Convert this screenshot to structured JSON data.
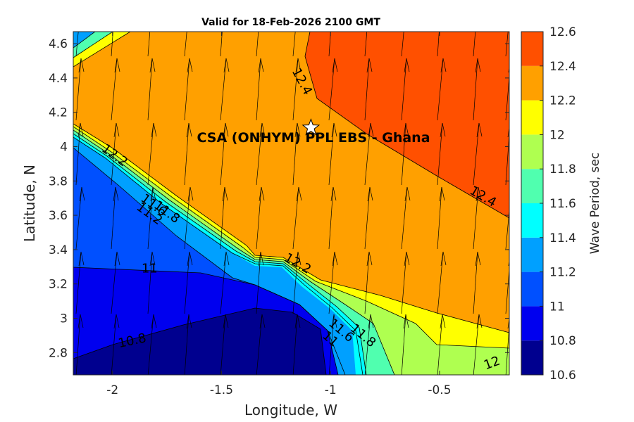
{
  "chart_data": {
    "type": "contour",
    "title": "Valid for 18-Feb-2026 2100 GMT",
    "xlabel": "Longitude, W",
    "ylabel": "Latitude, N",
    "xlim": [
      -2.18,
      -0.18
    ],
    "ylim": [
      2.67,
      4.67
    ],
    "xticks": [
      "-2",
      "-1.5",
      "-1",
      "-0.5"
    ],
    "xtick_values": [
      -2,
      -1.5,
      -1,
      -0.5
    ],
    "yticks": [
      "2.8",
      "3",
      "3.2",
      "3.4",
      "3.6",
      "3.8",
      "4",
      "4.2",
      "4.4",
      "4.6"
    ],
    "ytick_values": [
      2.8,
      3.0,
      3.2,
      3.4,
      3.6,
      3.8,
      4.0,
      4.2,
      4.4,
      4.6
    ],
    "colorbar": {
      "label": "Wave Period, sec",
      "tick_labels": [
        "10.6",
        "10.8",
        "11",
        "11.2",
        "11.4",
        "11.6",
        "11.8",
        "12",
        "12.2",
        "12.4",
        "12.6"
      ],
      "levels": [
        10.6,
        10.8,
        11.0,
        11.2,
        11.4,
        11.6,
        11.8,
        12.0,
        12.2,
        12.4,
        12.6
      ],
      "colors": [
        "#00008f",
        "#0000ef",
        "#0050ff",
        "#00a0ff",
        "#00ffff",
        "#50ffaf",
        "#afff50",
        "#ffff00",
        "#ffa000",
        "#ff5000"
      ]
    },
    "contour_labels": [
      {
        "text": "12.4",
        "lon": -1.13,
        "lat": 4.38,
        "angle": 62
      },
      {
        "text": "12.4",
        "lon": -0.3,
        "lat": 3.71,
        "angle": 30
      },
      {
        "text": "12.2",
        "lon": -1.99,
        "lat": 3.95,
        "angle": 36
      },
      {
        "text": "11.8",
        "lon": -1.75,
        "lat": 3.62,
        "angle": 36
      },
      {
        "text": "11.6",
        "lon": -1.81,
        "lat": 3.66,
        "angle": 36
      },
      {
        "text": "11.2",
        "lon": -1.83,
        "lat": 3.61,
        "angle": 36
      },
      {
        "text": "12.2",
        "lon": -1.15,
        "lat": 3.32,
        "angle": 30
      },
      {
        "text": "11",
        "lon": -1.83,
        "lat": 3.29,
        "angle": 0
      },
      {
        "text": "10.8",
        "lon": -1.91,
        "lat": 2.87,
        "angle": -12
      },
      {
        "text": "11.8",
        "lon": -0.85,
        "lat": 2.9,
        "angle": 40
      },
      {
        "text": "11.6",
        "lon": -0.95,
        "lat": 2.93,
        "angle": 40
      },
      {
        "text": "11",
        "lon": -1.0,
        "lat": 2.88,
        "angle": 40
      },
      {
        "text": "12",
        "lon": -0.26,
        "lat": 2.74,
        "angle": -20
      }
    ],
    "marker": {
      "label": "CSA (ONHYM) PPL EBS  - Ghana",
      "lon": -1.09,
      "lat": 4.11
    }
  }
}
